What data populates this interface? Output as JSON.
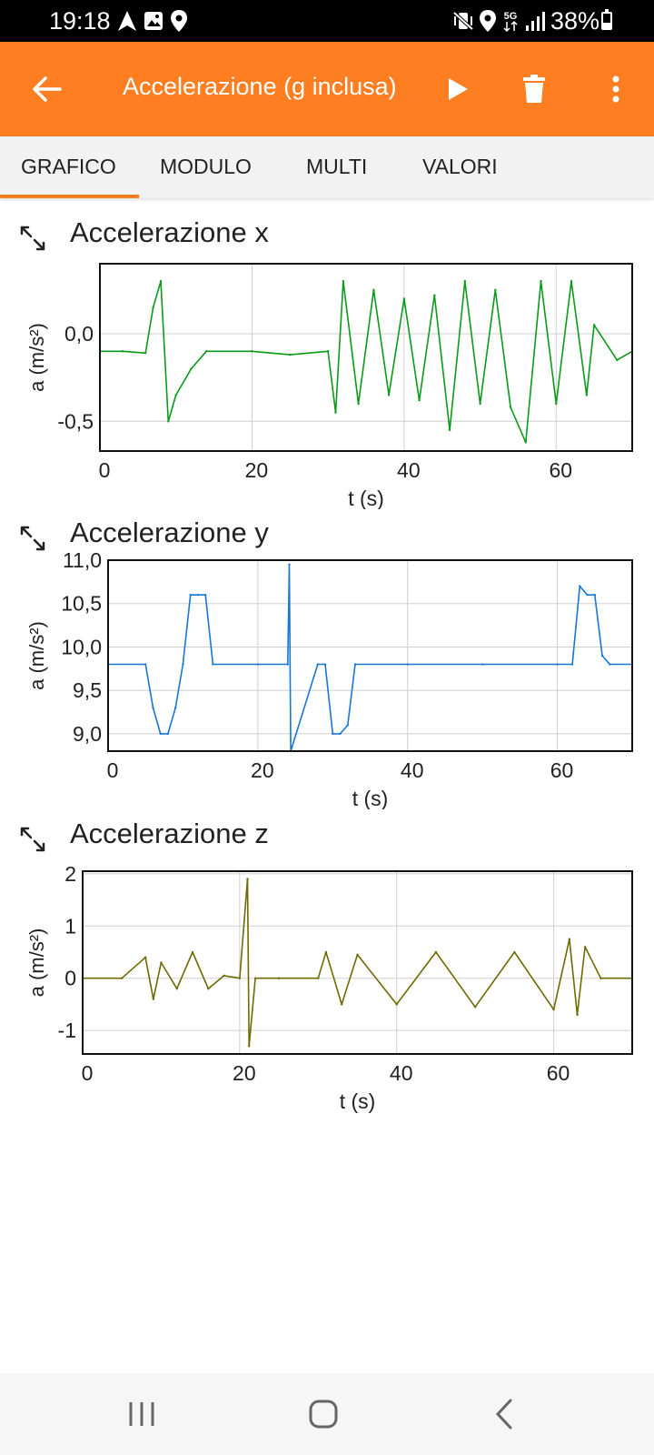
{
  "status_bar": {
    "time": "19:18",
    "battery": "38%",
    "battery_level": 0.38,
    "network": "5G",
    "left_icons": [
      "navigation-icon",
      "gallery-icon",
      "location-icon"
    ],
    "right_icons": [
      "vibrate-mute-icon",
      "location-icon",
      "5g-icon",
      "signal-icon",
      "battery-icon"
    ]
  },
  "app_bar": {
    "title": "Accelerazione (g inclusa)",
    "accent": "#ff7e22",
    "icons": [
      "back-arrow-icon",
      "play-icon",
      "trash-icon",
      "more-vertical-icon"
    ]
  },
  "tabs": [
    {
      "label": "GRAFICO",
      "active": true
    },
    {
      "label": "MODULO",
      "active": false
    },
    {
      "label": "MULTI",
      "active": false
    },
    {
      "label": "VALORI",
      "active": false
    }
  ],
  "charts": [
    {
      "title": "Accelerazione x",
      "icon": "expand-icon",
      "xlabel": "t (s)",
      "ylabel": "a (m/s²)",
      "y_ticks": [
        "0,0",
        "-0,5"
      ],
      "x_ticks": [
        "0",
        "20",
        "40",
        "60"
      ]
    },
    {
      "title": "Accelerazione y",
      "icon": "expand-icon",
      "xlabel": "t (s)",
      "ylabel": "a (m/s²)",
      "y_ticks": [
        "11,0",
        "10,5",
        "10,0",
        "9,5",
        "9,0"
      ],
      "x_ticks": [
        "0",
        "20",
        "40",
        "60"
      ]
    },
    {
      "title": "Accelerazione z",
      "icon": "expand-icon",
      "xlabel": "t (s)",
      "ylabel": "a (m/s²)",
      "y_ticks": [
        "2",
        "1",
        "0",
        "-1"
      ],
      "x_ticks": [
        "0",
        "20",
        "40",
        "60"
      ]
    }
  ],
  "chart_data": [
    {
      "type": "line",
      "title": "Accelerazione x",
      "xlabel": "t (s)",
      "ylabel": "a (m/s²)",
      "xlim": [
        0,
        70
      ],
      "ylim": [
        -0.67,
        0.4
      ],
      "x_ticks": [
        0,
        20,
        40,
        60
      ],
      "y_ticks": [
        0.0,
        -0.5
      ],
      "grid": true,
      "color": "#0a9a1a",
      "series": [
        {
          "x": [
            0,
            3,
            6,
            7,
            8,
            9,
            10,
            12,
            14,
            20,
            25,
            30,
            31,
            32,
            34,
            36,
            38,
            40,
            42,
            44,
            46,
            48,
            50,
            52,
            54,
            56,
            58,
            60,
            62,
            64,
            65,
            68,
            70
          ],
          "y": [
            -0.1,
            -0.1,
            -0.11,
            0.15,
            0.3,
            -0.5,
            -0.35,
            -0.2,
            -0.1,
            -0.1,
            -0.12,
            -0.1,
            -0.45,
            0.3,
            -0.4,
            0.25,
            -0.35,
            0.2,
            -0.38,
            0.22,
            -0.55,
            0.3,
            -0.4,
            0.25,
            -0.42,
            -0.62,
            0.3,
            -0.4,
            0.3,
            -0.35,
            0.05,
            -0.15,
            -0.1
          ]
        }
      ]
    },
    {
      "type": "line",
      "title": "Accelerazione y",
      "xlabel": "t (s)",
      "ylabel": "a (m/s²)",
      "xlim": [
        0,
        70
      ],
      "ylim": [
        8.8,
        11.0
      ],
      "x_ticks": [
        0,
        20,
        40,
        60
      ],
      "y_ticks": [
        11.0,
        10.5,
        10.0,
        9.5,
        9.0
      ],
      "grid": true,
      "color": "#1677d6",
      "series": [
        {
          "x": [
            0,
            5,
            6,
            7,
            8,
            9,
            10,
            11,
            12,
            13,
            14,
            20,
            24,
            24.2,
            24.4,
            28,
            29,
            30,
            31,
            32,
            33,
            40,
            50,
            60,
            62,
            63,
            64,
            65,
            66,
            67,
            70
          ],
          "y": [
            9.8,
            9.8,
            9.3,
            9.0,
            9.0,
            9.3,
            9.8,
            10.6,
            10.6,
            10.6,
            9.8,
            9.8,
            9.8,
            10.95,
            8.8,
            9.8,
            9.8,
            9.0,
            9.0,
            9.1,
            9.8,
            9.8,
            9.8,
            9.8,
            9.8,
            10.7,
            10.6,
            10.6,
            9.9,
            9.8,
            9.8
          ]
        }
      ]
    },
    {
      "type": "line",
      "title": "Accelerazione z",
      "xlabel": "t (s)",
      "ylabel": "a (m/s²)",
      "xlim": [
        0,
        70
      ],
      "ylim": [
        -1.45,
        2.05
      ],
      "x_ticks": [
        0,
        20,
        40,
        60
      ],
      "y_ticks": [
        2,
        1,
        0,
        -1
      ],
      "grid": true,
      "color": "#6f6a00",
      "series": [
        {
          "x": [
            0,
            5,
            8,
            9,
            10,
            12,
            14,
            16,
            18,
            20,
            21,
            21.2,
            22,
            25,
            30,
            31,
            33,
            35,
            40,
            45,
            50,
            55,
            60,
            62,
            63,
            64,
            66,
            70
          ],
          "y": [
            0.0,
            0.0,
            0.4,
            -0.4,
            0.3,
            -0.2,
            0.5,
            -0.2,
            0.05,
            0.0,
            1.9,
            -1.3,
            0.0,
            0.0,
            0.0,
            0.5,
            -0.5,
            0.45,
            -0.5,
            0.5,
            -0.55,
            0.5,
            -0.6,
            0.75,
            -0.7,
            0.6,
            0.0,
            0.0
          ]
        }
      ]
    }
  ],
  "nav_bar": {
    "icons": [
      "recent-apps-icon",
      "home-icon",
      "back-icon"
    ]
  }
}
